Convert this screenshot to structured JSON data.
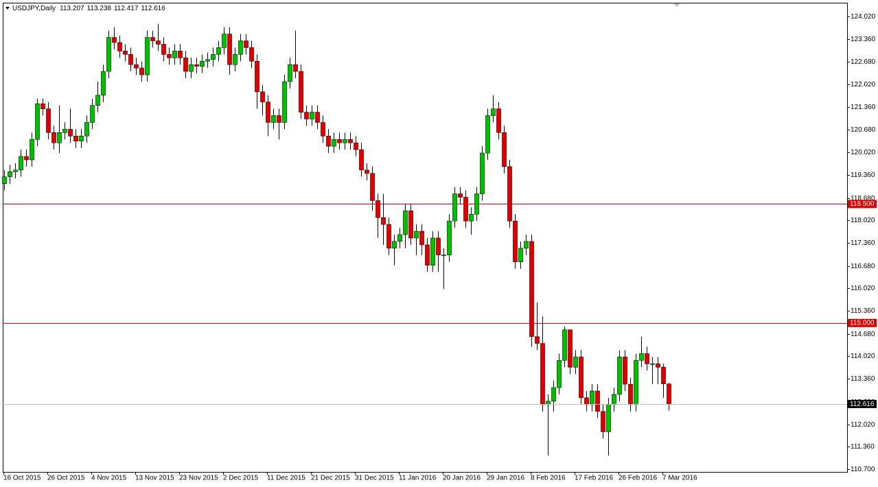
{
  "chart_data": {
    "type": "candlestick",
    "symbol": "USDJPY,Daily",
    "categories": [
      "16 Oct 2015",
      null,
      null,
      null,
      null,
      null,
      null,
      null,
      "26 Oct 2015",
      null,
      null,
      null,
      null,
      null,
      null,
      null,
      "4 Nov 2015",
      null,
      null,
      null,
      null,
      null,
      null,
      null,
      "13 Nov 2015",
      null,
      null,
      null,
      null,
      null,
      null,
      null,
      "23 Nov 2015",
      null,
      null,
      null,
      null,
      null,
      null,
      null,
      "2 Dec 2015",
      null,
      null,
      null,
      null,
      null,
      null,
      null,
      "11 Dec 2015",
      null,
      null,
      null,
      null,
      null,
      null,
      null,
      "21 Dec 2015",
      null,
      null,
      null,
      null,
      null,
      null,
      null,
      "31 Dec 2015",
      null,
      null,
      null,
      null,
      null,
      null,
      null,
      "11 Jan 2016",
      null,
      null,
      null,
      null,
      null,
      null,
      null,
      "20 Jan 2016",
      null,
      null,
      null,
      null,
      null,
      null,
      null,
      "29 Jan 2016",
      null,
      null,
      null,
      null,
      null,
      null,
      null,
      "8 Feb 2016",
      null,
      null,
      null,
      null,
      null,
      null,
      null,
      "17 Feb 2016",
      null,
      null,
      null,
      null,
      null,
      null,
      null,
      "26 Feb 2016",
      null,
      null,
      null,
      null,
      null,
      null,
      null,
      "7 Mar 2016",
      null
    ],
    "open": [
      119.1,
      119.3,
      119.45,
      119.5,
      119.9,
      119.8,
      120.4,
      121.45,
      121.3,
      120.6,
      120.3,
      120.6,
      120.7,
      120.5,
      120.35,
      120.5,
      120.9,
      121.4,
      121.7,
      122.4,
      123.4,
      123.25,
      123.0,
      122.9,
      122.6,
      122.5,
      122.3,
      123.4,
      123.3,
      123.2,
      122.9,
      122.8,
      123.0,
      122.8,
      122.4,
      122.6,
      122.55,
      122.7,
      122.75,
      122.9,
      123.1,
      123.5,
      122.6,
      122.9,
      123.3,
      123.1,
      122.7,
      121.8,
      121.5,
      120.9,
      121.1,
      120.9,
      122.1,
      122.6,
      122.4,
      121.2,
      121.0,
      121.2,
      120.9,
      120.5,
      120.2,
      120.4,
      120.3,
      120.4,
      120.3,
      120.1,
      119.5,
      119.4,
      118.6,
      118.1,
      117.9,
      117.2,
      117.4,
      117.6,
      118.3,
      117.5,
      117.7,
      117.3,
      116.7,
      117.5,
      117.0,
      117.0,
      118.0,
      118.8,
      118.7,
      118.0,
      118.2,
      118.8,
      120.0,
      121.1,
      121.3,
      120.6,
      119.6,
      118.0,
      116.8,
      117.2,
      117.4,
      114.6,
      114.4,
      112.6,
      112.7,
      113.1,
      113.9,
      114.8,
      113.7,
      114.0,
      112.8,
      112.6,
      113.0,
      112.4,
      111.8,
      112.6,
      112.9,
      114.0,
      113.2,
      112.6,
      113.9,
      114.1,
      113.8,
      113.8,
      113.7,
      113.207
    ],
    "high": [
      119.5,
      119.65,
      119.7,
      120.1,
      120.1,
      120.6,
      121.6,
      121.6,
      121.5,
      120.8,
      121.4,
      120.9,
      121.3,
      120.7,
      120.7,
      121.1,
      121.6,
      122.1,
      122.6,
      123.6,
      123.7,
      123.45,
      123.2,
      123.1,
      122.8,
      122.7,
      123.6,
      123.6,
      123.8,
      123.4,
      123.1,
      123.2,
      123.2,
      123.0,
      122.8,
      122.8,
      122.9,
      122.95,
      123.1,
      123.3,
      123.7,
      123.7,
      123.1,
      123.5,
      123.5,
      123.3,
      122.9,
      122.0,
      121.7,
      121.3,
      121.3,
      122.3,
      122.8,
      123.6,
      122.6,
      121.4,
      121.4,
      121.4,
      121.1,
      120.7,
      120.6,
      120.6,
      120.6,
      120.6,
      120.5,
      120.3,
      119.7,
      119.6,
      118.8,
      118.8,
      118.1,
      117.6,
      117.8,
      118.5,
      118.5,
      117.9,
      117.9,
      117.5,
      117.7,
      117.7,
      117.2,
      118.2,
      119.0,
      119.0,
      118.9,
      118.4,
      119.0,
      120.2,
      121.3,
      121.7,
      121.5,
      120.8,
      119.8,
      118.2,
      117.4,
      117.6,
      117.6,
      115.6,
      115.2,
      112.9,
      113.3,
      114.1,
      114.9,
      114.8,
      114.2,
      114.2,
      113.0,
      113.2,
      113.2,
      112.6,
      112.8,
      113.1,
      114.2,
      114.2,
      113.4,
      114.1,
      114.6,
      114.3,
      114.0,
      114.0,
      113.8,
      113.238
    ],
    "low": [
      118.9,
      119.1,
      119.25,
      119.3,
      119.6,
      119.6,
      120.2,
      121.1,
      120.4,
      120.1,
      120.0,
      120.4,
      120.3,
      120.15,
      120.15,
      120.3,
      120.7,
      121.2,
      121.5,
      122.2,
      123.05,
      122.8,
      122.7,
      122.4,
      122.3,
      122.1,
      122.1,
      123.1,
      123.0,
      122.7,
      122.6,
      122.6,
      122.6,
      122.2,
      122.2,
      122.35,
      122.35,
      122.5,
      122.55,
      122.7,
      122.9,
      122.3,
      122.4,
      122.7,
      122.9,
      122.5,
      121.3,
      121.1,
      120.5,
      120.7,
      120.4,
      120.7,
      121.9,
      122.2,
      121.0,
      120.8,
      120.8,
      120.7,
      120.3,
      120.0,
      120.0,
      120.1,
      120.1,
      120.1,
      119.9,
      119.3,
      119.2,
      118.3,
      117.5,
      117.3,
      117.0,
      116.7,
      117.2,
      117.2,
      117.3,
      117.0,
      117.0,
      116.5,
      116.5,
      116.5,
      116.0,
      116.8,
      117.8,
      118.5,
      117.8,
      117.6,
      118.0,
      118.6,
      119.8,
      120.9,
      120.4,
      119.4,
      117.8,
      116.6,
      116.6,
      117.0,
      114.3,
      114.2,
      112.4,
      111.1,
      112.4,
      112.9,
      113.7,
      113.5,
      113.5,
      112.6,
      112.4,
      112.4,
      112.2,
      111.6,
      111.1,
      112.4,
      112.7,
      113.0,
      112.4,
      112.4,
      113.7,
      113.6,
      113.2,
      113.2,
      112.8,
      112.417
    ],
    "close": [
      119.3,
      119.45,
      119.5,
      119.9,
      119.8,
      120.4,
      121.45,
      121.3,
      120.6,
      120.3,
      120.6,
      120.7,
      120.5,
      120.35,
      120.5,
      120.9,
      121.4,
      121.7,
      122.4,
      123.4,
      123.25,
      123.0,
      122.9,
      122.6,
      122.5,
      122.3,
      123.4,
      123.3,
      123.2,
      122.9,
      122.8,
      123.0,
      122.8,
      122.4,
      122.6,
      122.55,
      122.7,
      122.75,
      122.9,
      123.1,
      123.5,
      122.6,
      122.9,
      123.3,
      123.1,
      122.7,
      121.8,
      121.5,
      120.9,
      121.1,
      120.9,
      122.1,
      122.6,
      122.4,
      121.2,
      121.0,
      121.2,
      120.9,
      120.5,
      120.2,
      120.4,
      120.3,
      120.4,
      120.3,
      120.1,
      119.5,
      119.4,
      118.6,
      118.1,
      117.9,
      117.2,
      117.4,
      117.6,
      118.3,
      117.5,
      117.7,
      117.3,
      116.7,
      117.5,
      117.0,
      117.0,
      118.0,
      118.8,
      118.7,
      118.0,
      118.2,
      118.8,
      120.0,
      121.1,
      121.3,
      120.6,
      119.6,
      118.0,
      116.8,
      117.2,
      117.4,
      114.6,
      114.4,
      112.6,
      112.7,
      113.1,
      113.9,
      114.8,
      113.7,
      114.0,
      112.8,
      112.6,
      113.0,
      112.4,
      111.8,
      112.6,
      112.9,
      114.0,
      113.2,
      112.6,
      113.9,
      114.1,
      113.8,
      113.8,
      113.7,
      113.21,
      112.616
    ],
    "up_color": "#00c000",
    "down_color": "#e00000",
    "ylim": [
      110.62,
      124.42
    ],
    "yticks": [
      {
        "value": 110.7,
        "label": "110.700"
      },
      {
        "value": 111.36,
        "label": "111.360"
      },
      {
        "value": 112.02,
        "label": "112.020"
      },
      {
        "value": 112.68,
        "label": "112.680"
      },
      {
        "value": 113.36,
        "label": "113.360"
      },
      {
        "value": 114.02,
        "label": "114.020"
      },
      {
        "value": 114.68,
        "label": "114.680"
      },
      {
        "value": 115.36,
        "label": "115.360"
      },
      {
        "value": 116.02,
        "label": "116.020"
      },
      {
        "value": 116.68,
        "label": "116.680"
      },
      {
        "value": 117.36,
        "label": "117.360"
      },
      {
        "value": 118.02,
        "label": "118.020"
      },
      {
        "value": 118.68,
        "label": "118.680"
      },
      {
        "value": 119.36,
        "label": "119.360"
      },
      {
        "value": 120.02,
        "label": "120.020"
      },
      {
        "value": 120.68,
        "label": "120.680"
      },
      {
        "value": 121.36,
        "label": "121.360"
      },
      {
        "value": 122.02,
        "label": "122.020"
      },
      {
        "value": 122.68,
        "label": "122.680"
      },
      {
        "value": 123.36,
        "label": "123.360"
      },
      {
        "value": 124.02,
        "label": "124.020"
      }
    ],
    "hlines": [
      {
        "value": 118.5,
        "label": "118.500",
        "color": "#e00000"
      },
      {
        "value": 115,
        "label": "115.000",
        "color": "#e00000"
      }
    ],
    "price_line_color": "#c0c0c0"
  }
}
